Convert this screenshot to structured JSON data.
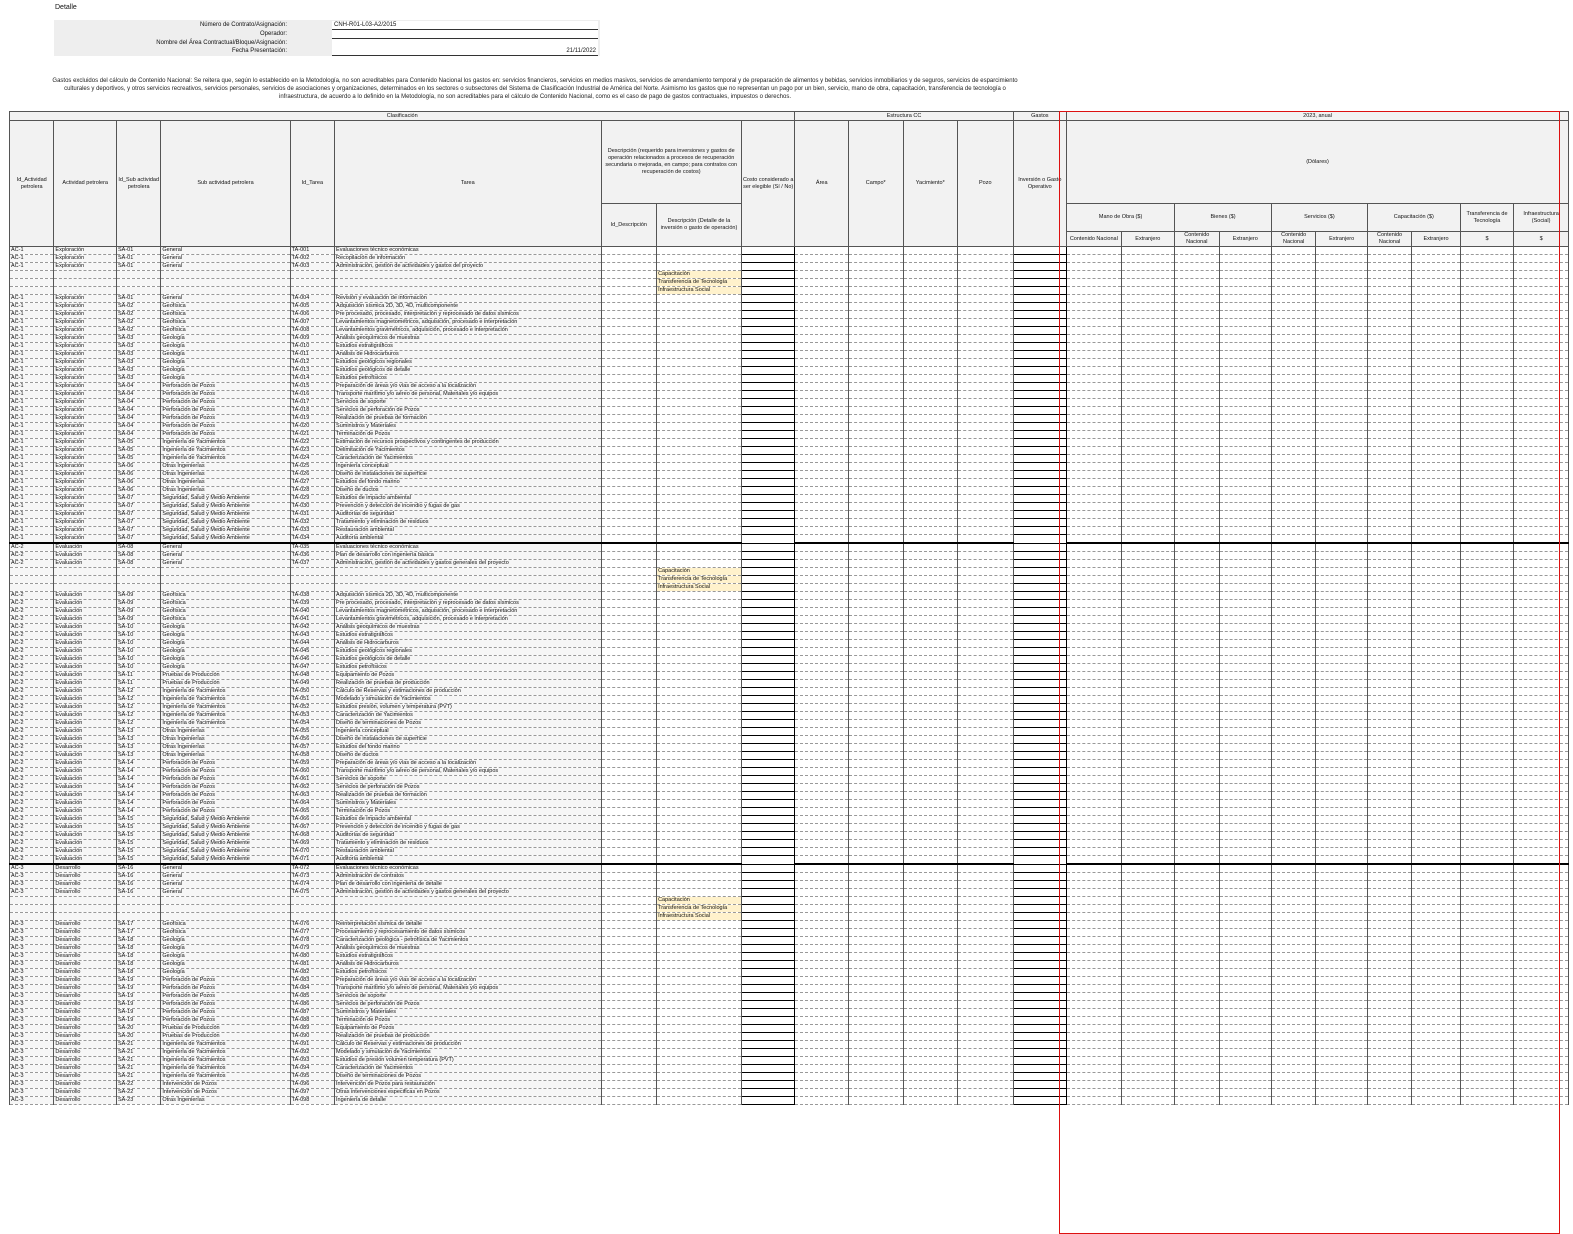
{
  "sheet_title": "Detalle",
  "form": {
    "contract_label": "Número de Contrato/Asignación:",
    "contract_value": "CNH-R01-L03-A2/2015",
    "operator_label": "Operador:",
    "operator_value": "",
    "area_label": "Nombre del Área Contractual/Bloque/Asignación:",
    "area_value": "",
    "date_label": "Fecha Presentación:",
    "date_value": "21/11/2022"
  },
  "note": "Gastos excluidos del cálculo de Contenido Nacional: Se reitera que, según lo establecido en la Metodología, no son acreditables para Contenido Nacional los gastos en: servicios financieros, servicios en medios masivos, servicios de arrendamiento temporal y de preparación de alimentos y bebidas, servicios inmobiliarios y de seguros, servicios de esparcimiento culturales y deportivos, y otros servicios recreativos, servicios personales, servicios de asociaciones y organizaciones, determinados en los sectores o subsectores del Sistema de Clasificación Industrial de América del Norte. Asimismo los gastos que no representan un pago por un bien, servicio, mano de obra, capacitación, transferencia de tecnología o infraestructura, de acuerdo a lo definido en la Metodología, no son acreditables para el cálculo de Contenido Nacional, como es el caso de pago de gastos contractuales, impuestos o derechos.",
  "headers": {
    "clasificacion": "Clasificación",
    "estructura": "Estructura CC",
    "gastos": "Gastos",
    "year": "2023, anual",
    "dolares": "(Dólares)",
    "id_actividad": "Id_Actividad petrolera",
    "actividad": "Actividad petrolera",
    "id_sub": "Id_Sub actividad petrolera",
    "sub": "Sub actividad petrolera",
    "id_tarea": "Id_Tarea",
    "tarea": "Tarea",
    "descripcion_top": "Descripción (requerido para inversiones y gastos de operación relacionados a procesos de recuperación secundaria o mejorada, en campo; para contratos con recuperación de costos)",
    "id_descripcion": "Id_Descripción",
    "descripcion": "Descripción (Detalle de la inversión o gasto de operación)",
    "costo": "Costo considerado a ser elegible (Sí / No)",
    "area": "Área",
    "campo": "Campo*",
    "yacimiento": "Yacimiento*",
    "pozo": "Pozo",
    "inversion": "Inversión o Gasto Operativo",
    "mano_obra": "Mano de Obra ($)",
    "bienes": "Bienes ($)",
    "servicios": "Servicios ($)",
    "capacitacion": "Capacitación ($)",
    "transferencia": "Transferencia de Tecnología",
    "infraestructura": "Infraestructura (Social)",
    "cn": "Contenido Nacional",
    "ext": "Extranjero",
    "usd": "$"
  },
  "rows": [
    [
      "AC-1",
      "Exploración",
      "SA-01",
      "General",
      "TA-001",
      "Evaluaciones técnico económicas",
      ""
    ],
    [
      "AC-1",
      "Exploración",
      "SA-01",
      "General",
      "TA-002",
      "Recopilación de información",
      ""
    ],
    [
      "AC-1",
      "Exploración",
      "SA-01",
      "General",
      "TA-003",
      "Administración, gestión de actividades y gastos del proyecto",
      ""
    ],
    [
      "",
      "",
      "",
      "",
      "",
      "",
      "Capacitación"
    ],
    [
      "",
      "",
      "",
      "",
      "",
      "",
      "Transferencia de Tecnología"
    ],
    [
      "",
      "",
      "",
      "",
      "",
      "",
      "Infraestructura Social"
    ],
    [
      "AC-1",
      "Exploración",
      "SA-01",
      "General",
      "TA-004",
      "Revisión y evaluación de información",
      ""
    ],
    [
      "AC-1",
      "Exploración",
      "SA-02",
      "Geofísica",
      "TA-005",
      "Adquisición sísmica 2D, 3D, 4D, multicomponente",
      ""
    ],
    [
      "AC-1",
      "Exploración",
      "SA-02",
      "Geofísica",
      "TA-006",
      "Pre procesado, procesado, interpretación y reprocesado de datos sísmicos",
      ""
    ],
    [
      "AC-1",
      "Exploración",
      "SA-02",
      "Geofísica",
      "TA-007",
      "Levantamientos magnetométricos, adquisición, procesado e interpretación",
      ""
    ],
    [
      "AC-1",
      "Exploración",
      "SA-02",
      "Geofísica",
      "TA-008",
      "Levantamientos gravimétricos, adquisición, procesado e interpretación",
      ""
    ],
    [
      "AC-1",
      "Exploración",
      "SA-03",
      "Geología",
      "TA-009",
      "Análisis geoquímicos de muestras",
      ""
    ],
    [
      "AC-1",
      "Exploración",
      "SA-03",
      "Geología",
      "TA-010",
      "Estudios estratigráficos",
      ""
    ],
    [
      "AC-1",
      "Exploración",
      "SA-03",
      "Geología",
      "TA-011",
      "Análisis de Hidrocarburos",
      ""
    ],
    [
      "AC-1",
      "Exploración",
      "SA-03",
      "Geología",
      "TA-012",
      "Estudios geológicos regionales",
      ""
    ],
    [
      "AC-1",
      "Exploración",
      "SA-03",
      "Geología",
      "TA-013",
      "Estudios geológicos de detalle",
      ""
    ],
    [
      "AC-1",
      "Exploración",
      "SA-03",
      "Geología",
      "TA-014",
      "Estudios petrofísicos",
      ""
    ],
    [
      "AC-1",
      "Exploración",
      "SA-04",
      "Perforación de Pozos",
      "TA-015",
      "Preparación de áreas y/o vías de acceso a la localización",
      ""
    ],
    [
      "AC-1",
      "Exploración",
      "SA-04",
      "Perforación de Pozos",
      "TA-016",
      "Transporte marítimo y/o aéreo de personal, Materiales y/o equipos",
      ""
    ],
    [
      "AC-1",
      "Exploración",
      "SA-04",
      "Perforación de Pozos",
      "TA-017",
      "Servicios de soporte",
      ""
    ],
    [
      "AC-1",
      "Exploración",
      "SA-04",
      "Perforación de Pozos",
      "TA-018",
      "Servicios de perforación de Pozos",
      ""
    ],
    [
      "AC-1",
      "Exploración",
      "SA-04",
      "Perforación de Pozos",
      "TA-019",
      "Realización de pruebas de formación",
      ""
    ],
    [
      "AC-1",
      "Exploración",
      "SA-04",
      "Perforación de Pozos",
      "TA-020",
      "Suministros y Materiales",
      ""
    ],
    [
      "AC-1",
      "Exploración",
      "SA-04",
      "Perforación de Pozos",
      "TA-021",
      "Terminación de Pozos",
      ""
    ],
    [
      "AC-1",
      "Exploración",
      "SA-05",
      "Ingeniería de Yacimientos",
      "TA-022",
      "Estimación de recursos prospectivos y contingentes de producción",
      ""
    ],
    [
      "AC-1",
      "Exploración",
      "SA-05",
      "Ingeniería de Yacimientos",
      "TA-023",
      "Delimitación de Yacimientos",
      ""
    ],
    [
      "AC-1",
      "Exploración",
      "SA-05",
      "Ingeniería de Yacimientos",
      "TA-024",
      "Caracterización de Yacimientos",
      ""
    ],
    [
      "AC-1",
      "Exploración",
      "SA-06",
      "Otras Ingenierías",
      "TA-025",
      "Ingeniería conceptual",
      ""
    ],
    [
      "AC-1",
      "Exploración",
      "SA-06",
      "Otras Ingenierías",
      "TA-026",
      "Diseño de instalaciones de superficie",
      ""
    ],
    [
      "AC-1",
      "Exploración",
      "SA-06",
      "Otras Ingenierías",
      "TA-027",
      "Estudios del fondo marino",
      ""
    ],
    [
      "AC-1",
      "Exploración",
      "SA-06",
      "Otras Ingenierías",
      "TA-028",
      "Diseño de ductos",
      ""
    ],
    [
      "AC-1",
      "Exploración",
      "SA-07",
      "Seguridad, Salud y Medio Ambiente",
      "TA-029",
      "Estudios de impacto ambiental",
      ""
    ],
    [
      "AC-1",
      "Exploración",
      "SA-07",
      "Seguridad, Salud y Medio Ambiente",
      "TA-030",
      "Prevención y detección de incendio y fugas de gas",
      ""
    ],
    [
      "AC-1",
      "Exploración",
      "SA-07",
      "Seguridad, Salud y Medio Ambiente",
      "TA-031",
      "Auditorías de seguridad",
      ""
    ],
    [
      "AC-1",
      "Exploración",
      "SA-07",
      "Seguridad, Salud y Medio Ambiente",
      "TA-032",
      "Tratamiento y eliminación de residuos",
      ""
    ],
    [
      "AC-1",
      "Exploración",
      "SA-07",
      "Seguridad, Salud y Medio Ambiente",
      "TA-033",
      "Restauración ambiental",
      ""
    ],
    [
      "AC-1",
      "Exploración",
      "SA-07",
      "Seguridad, Salud y Medio Ambiente",
      "TA-034",
      "Auditoría ambiental",
      ""
    ],
    [
      "AC-2",
      "Evaluación",
      "SA-08",
      "General",
      "TA-035",
      "Evaluaciones técnico económicas",
      ""
    ],
    [
      "AC-2",
      "Evaluación",
      "SA-08",
      "General",
      "TA-036",
      "Plan de desarrollo con ingeniería básica",
      ""
    ],
    [
      "AC-2",
      "Evaluación",
      "SA-08",
      "General",
      "TA-037",
      "Administración, gestión de actividades y gastos generales del proyecto",
      ""
    ],
    [
      "",
      "",
      "",
      "",
      "",
      "",
      "Capacitación"
    ],
    [
      "",
      "",
      "",
      "",
      "",
      "",
      "Transferencia de Tecnología"
    ],
    [
      "",
      "",
      "",
      "",
      "",
      "",
      "Infraestructura Social"
    ],
    [
      "AC-2",
      "Evaluación",
      "SA-09",
      "Geofísica",
      "TA-038",
      "Adquisición sísmica 2D, 3D, 4D, multicomponente",
      ""
    ],
    [
      "AC-2",
      "Evaluación",
      "SA-09",
      "Geofísica",
      "TA-039",
      "Pre procesado, procesado, interpretación y reprocesado de datos sísmicos",
      ""
    ],
    [
      "AC-2",
      "Evaluación",
      "SA-09",
      "Geofísica",
      "TA-040",
      "Levantamientos magnetométricos, adquisición, procesado e interpretación",
      ""
    ],
    [
      "AC-2",
      "Evaluación",
      "SA-09",
      "Geofísica",
      "TA-041",
      "Levantamientos gravimétricos, adquisición, procesado e interpretación",
      ""
    ],
    [
      "AC-2",
      "Evaluación",
      "SA-10",
      "Geología",
      "TA-042",
      "Análisis geoquímicos de muestras",
      ""
    ],
    [
      "AC-2",
      "Evaluación",
      "SA-10",
      "Geología",
      "TA-043",
      "Estudios estratigráficos",
      ""
    ],
    [
      "AC-2",
      "Evaluación",
      "SA-10",
      "Geología",
      "TA-044",
      "Análisis de Hidrocarburos",
      ""
    ],
    [
      "AC-2",
      "Evaluación",
      "SA-10",
      "Geología",
      "TA-045",
      "Estudios geológicos regionales",
      ""
    ],
    [
      "AC-2",
      "Evaluación",
      "SA-10",
      "Geología",
      "TA-046",
      "Estudios geológicos de detalle",
      ""
    ],
    [
      "AC-2",
      "Evaluación",
      "SA-10",
      "Geología",
      "TA-047",
      "Estudios petrofísicos",
      ""
    ],
    [
      "AC-2",
      "Evaluación",
      "SA-11",
      "Pruebas de Producción",
      "TA-048",
      "Equipamiento de Pozos",
      ""
    ],
    [
      "AC-2",
      "Evaluación",
      "SA-11",
      "Pruebas de Producción",
      "TA-049",
      "Realización de pruebas de producción",
      ""
    ],
    [
      "AC-2",
      "Evaluación",
      "SA-12",
      "Ingeniería de Yacimientos",
      "TA-050",
      "Cálculo de Reservas y estimaciones de producción",
      ""
    ],
    [
      "AC-2",
      "Evaluación",
      "SA-12",
      "Ingeniería de Yacimientos",
      "TA-051",
      "Modelado y simulación de Yacimientos",
      ""
    ],
    [
      "AC-2",
      "Evaluación",
      "SA-12",
      "Ingeniería de Yacimientos",
      "TA-052",
      "Estudios presión, volumen y temperatura (PVT)",
      ""
    ],
    [
      "AC-2",
      "Evaluación",
      "SA-12",
      "Ingeniería de Yacimientos",
      "TA-053",
      "Caracterización de Yacimientos",
      ""
    ],
    [
      "AC-2",
      "Evaluación",
      "SA-12",
      "Ingeniería de Yacimientos",
      "TA-054",
      "Diseño de terminaciones de Pozos",
      ""
    ],
    [
      "AC-2",
      "Evaluación",
      "SA-13",
      "Otras Ingenierías",
      "TA-055",
      "Ingeniería conceptual",
      ""
    ],
    [
      "AC-2",
      "Evaluación",
      "SA-13",
      "Otras Ingenierías",
      "TA-056",
      "Diseño de instalaciones de superficie",
      ""
    ],
    [
      "AC-2",
      "Evaluación",
      "SA-13",
      "Otras Ingenierías",
      "TA-057",
      "Estudios del fondo marino",
      ""
    ],
    [
      "AC-2",
      "Evaluación",
      "SA-13",
      "Otras Ingenierías",
      "TA-058",
      "Diseño de ductos",
      ""
    ],
    [
      "AC-2",
      "Evaluación",
      "SA-14",
      "Perforación de Pozos",
      "TA-059",
      "Preparación de áreas y/o vías de acceso a la localización",
      ""
    ],
    [
      "AC-2",
      "Evaluación",
      "SA-14",
      "Perforación de Pozos",
      "TA-060",
      "Transporte marítimo y/o aéreo de personal, Materiales y/o equipos",
      ""
    ],
    [
      "AC-2",
      "Evaluación",
      "SA-14",
      "Perforación de Pozos",
      "TA-061",
      "Servicios de soporte",
      ""
    ],
    [
      "AC-2",
      "Evaluación",
      "SA-14",
      "Perforación de Pozos",
      "TA-062",
      "Servicios de perforación de Pozos",
      ""
    ],
    [
      "AC-2",
      "Evaluación",
      "SA-14",
      "Perforación de Pozos",
      "TA-063",
      "Realización de pruebas de formación",
      ""
    ],
    [
      "AC-2",
      "Evaluación",
      "SA-14",
      "Perforación de Pozos",
      "TA-064",
      "Suministros y Materiales",
      ""
    ],
    [
      "AC-2",
      "Evaluación",
      "SA-14",
      "Perforación de Pozos",
      "TA-065",
      "Terminación de Pozos",
      ""
    ],
    [
      "AC-2",
      "Evaluación",
      "SA-15",
      "Seguridad, Salud y Medio Ambiente",
      "TA-066",
      "Estudios de impacto ambiental",
      ""
    ],
    [
      "AC-2",
      "Evaluación",
      "SA-15",
      "Seguridad, Salud y Medio Ambiente",
      "TA-067",
      "Prevención y detección de incendio y fugas de gas",
      ""
    ],
    [
      "AC-2",
      "Evaluación",
      "SA-15",
      "Seguridad, Salud y Medio Ambiente",
      "TA-068",
      "Auditorías de seguridad",
      ""
    ],
    [
      "AC-2",
      "Evaluación",
      "SA-15",
      "Seguridad, Salud y Medio Ambiente",
      "TA-069",
      "Tratamiento y eliminación de residuos",
      ""
    ],
    [
      "AC-2",
      "Evaluación",
      "SA-15",
      "Seguridad, Salud y Medio Ambiente",
      "TA-070",
      "Restauración ambiental",
      ""
    ],
    [
      "AC-2",
      "Evaluación",
      "SA-15",
      "Seguridad, Salud y Medio Ambiente",
      "TA-071",
      "Auditoría ambiental",
      ""
    ],
    [
      "AC-3",
      "Desarrollo",
      "SA-16",
      "General",
      "TA-072",
      "Evaluaciones técnico económicas",
      ""
    ],
    [
      "AC-3",
      "Desarrollo",
      "SA-16",
      "General",
      "TA-073",
      "Administración de contratos",
      ""
    ],
    [
      "AC-3",
      "Desarrollo",
      "SA-16",
      "General",
      "TA-074",
      "Plan de desarrollo con ingeniería de detalle",
      ""
    ],
    [
      "AC-3",
      "Desarrollo",
      "SA-16",
      "General",
      "TA-075",
      "Administración, gestión de actividades y gastos generales del proyecto",
      ""
    ],
    [
      "",
      "",
      "",
      "",
      "",
      "",
      "Capacitación"
    ],
    [
      "",
      "",
      "",
      "",
      "",
      "",
      "Transferencia de Tecnología"
    ],
    [
      "",
      "",
      "",
      "",
      "",
      "",
      "Infraestructura Social"
    ],
    [
      "AC-3",
      "Desarrollo",
      "SA-17",
      "Geofísica",
      "TA-076",
      "Reinterpretación sísmica de detalle",
      ""
    ],
    [
      "AC-3",
      "Desarrollo",
      "SA-17",
      "Geofísica",
      "TA-077",
      "Procesamiento y reprocesamiento de datos sísmicos",
      ""
    ],
    [
      "AC-3",
      "Desarrollo",
      "SA-18",
      "Geología",
      "TA-078",
      "Caracterización geológica - petrofísica de Yacimientos",
      ""
    ],
    [
      "AC-3",
      "Desarrollo",
      "SA-18",
      "Geología",
      "TA-079",
      "Análisis geoquímicos de muestras",
      ""
    ],
    [
      "AC-3",
      "Desarrollo",
      "SA-18",
      "Geología",
      "TA-080",
      "Estudios estratigráficos",
      ""
    ],
    [
      "AC-3",
      "Desarrollo",
      "SA-18",
      "Geología",
      "TA-081",
      "Análisis de Hidrocarburos",
      ""
    ],
    [
      "AC-3",
      "Desarrollo",
      "SA-18",
      "Geología",
      "TA-082",
      "Estudios petrofísicos",
      ""
    ],
    [
      "AC-3",
      "Desarrollo",
      "SA-19",
      "Perforación de Pozos",
      "TA-083",
      "Preparación de áreas y/o vías de acceso a la localización",
      ""
    ],
    [
      "AC-3",
      "Desarrollo",
      "SA-19",
      "Perforación de Pozos",
      "TA-084",
      "Transporte marítimo y/o aéreo de personal, Materiales y/o equipos",
      ""
    ],
    [
      "AC-3",
      "Desarrollo",
      "SA-19",
      "Perforación de Pozos",
      "TA-085",
      "Servicios de soporte",
      ""
    ],
    [
      "AC-3",
      "Desarrollo",
      "SA-19",
      "Perforación de Pozos",
      "TA-086",
      "Servicios de perforación de Pozos",
      ""
    ],
    [
      "AC-3",
      "Desarrollo",
      "SA-19",
      "Perforación de Pozos",
      "TA-087",
      "Suministros y Materiales",
      ""
    ],
    [
      "AC-3",
      "Desarrollo",
      "SA-19",
      "Perforación de Pozos",
      "TA-088",
      "Terminación de Pozos",
      ""
    ],
    [
      "AC-3",
      "Desarrollo",
      "SA-20",
      "Pruebas de Producción",
      "TA-089",
      "Equipamiento de Pozos",
      ""
    ],
    [
      "AC-3",
      "Desarrollo",
      "SA-20",
      "Pruebas de Producción",
      "TA-090",
      "Realización de pruebas de producción",
      ""
    ],
    [
      "AC-3",
      "Desarrollo",
      "SA-21",
      "Ingeniería de Yacimientos",
      "TA-091",
      "Cálculo de Reservas y estimaciones de producción",
      ""
    ],
    [
      "AC-3",
      "Desarrollo",
      "SA-21",
      "Ingeniería de Yacimientos",
      "TA-092",
      "Modelado y simulación de Yacimientos",
      ""
    ],
    [
      "AC-3",
      "Desarrollo",
      "SA-21",
      "Ingeniería de Yacimientos",
      "TA-093",
      "Estudios de presión volumen temperatura (PVT)",
      ""
    ],
    [
      "AC-3",
      "Desarrollo",
      "SA-21",
      "Ingeniería de Yacimientos",
      "TA-094",
      "Caracterización de Yacimientos",
      ""
    ],
    [
      "AC-3",
      "Desarrollo",
      "SA-21",
      "Ingeniería de Yacimientos",
      "TA-095",
      "Diseño de terminaciones de Pozos",
      ""
    ],
    [
      "AC-3",
      "Desarrollo",
      "SA-22",
      "Intervención de Pozos",
      "TA-096",
      "Intervención de Pozos para restauración",
      ""
    ],
    [
      "AC-3",
      "Desarrollo",
      "SA-22",
      "Intervención de Pozos",
      "TA-097",
      "Otras intervenciones especificas en Pozos",
      ""
    ],
    [
      "AC-3",
      "Desarrollo",
      "SA-23",
      "Otras Ingenierías",
      "TA-098",
      "Ingeniería de detalle",
      ""
    ]
  ],
  "separator_before": [
    37,
    77
  ]
}
